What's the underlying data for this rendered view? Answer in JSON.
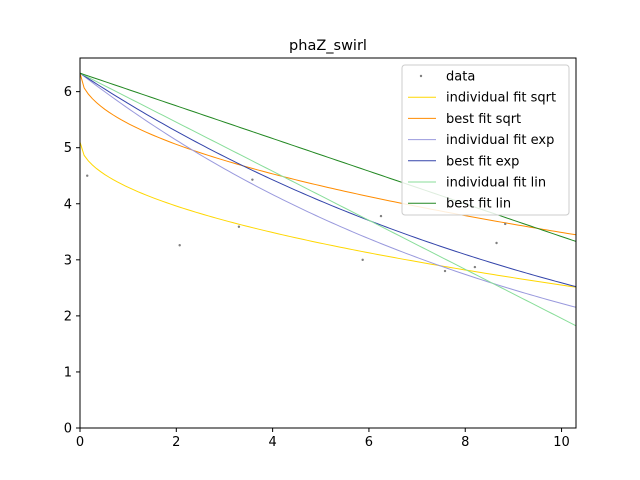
{
  "chart_data": {
    "type": "scatter",
    "title": "phaZ_swirl",
    "xlabel": "",
    "ylabel": "",
    "xlim": [
      0,
      10.3
    ],
    "ylim": [
      0,
      6.6
    ],
    "x_ticks": [
      0,
      2,
      4,
      6,
      8,
      10
    ],
    "y_ticks": [
      0,
      1,
      2,
      3,
      4,
      5,
      6
    ],
    "grid": false,
    "legend_position": "top-right",
    "data_points": {
      "name": "data",
      "color": "#7f7f7f",
      "points": [
        [
          0.15,
          4.5
        ],
        [
          2.07,
          3.26
        ],
        [
          3.3,
          3.59
        ],
        [
          3.58,
          4.43
        ],
        [
          5.87,
          3.0
        ],
        [
          6.25,
          3.78
        ],
        [
          7.58,
          2.8
        ],
        [
          8.2,
          2.87
        ],
        [
          8.65,
          3.3
        ],
        [
          8.83,
          3.64
        ]
      ]
    },
    "series": [
      {
        "name": "individual fit sqrt",
        "color": "#ffd700",
        "model": "sqrt",
        "params": {
          "a": 5.1,
          "b": 0.8064
        }
      },
      {
        "name": "best fit sqrt",
        "color": "#ff8c00",
        "model": "sqrt",
        "params": {
          "a": 6.33,
          "b": 0.8986
        }
      },
      {
        "name": "individual fit exp",
        "color": "#9999dd",
        "model": "exp",
        "params": {
          "a": 6.33,
          "k": 0.1047
        }
      },
      {
        "name": "best fit exp",
        "color": "#3344aa",
        "model": "exp",
        "params": {
          "a": 6.33,
          "k": 0.0894
        }
      },
      {
        "name": "individual fit lin",
        "color": "#88dd99",
        "model": "lin",
        "params": {
          "a": 6.33,
          "m": -0.4375
        }
      },
      {
        "name": "best fit lin",
        "color": "#228822",
        "model": "lin",
        "params": {
          "a": 6.33,
          "m": -0.2915
        }
      }
    ]
  }
}
